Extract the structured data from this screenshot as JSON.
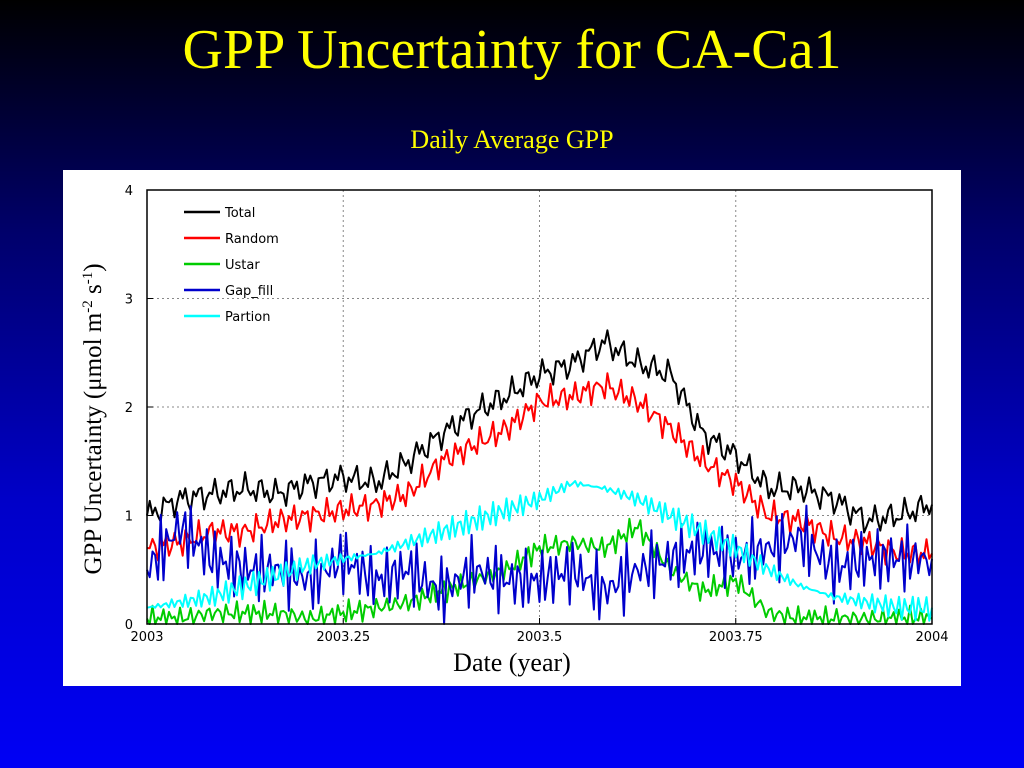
{
  "title": "GPP Uncertainty for CA-Ca1",
  "chart_data": {
    "type": "line",
    "title": "Daily Average GPP",
    "xlabel": "Date (year)",
    "ylabel_main": "GPP Uncertainty (μmol m",
    "ylabel_sup1": "-2",
    "ylabel_mid": " s",
    "ylabel_sup2": "-1",
    "ylabel_end": ")",
    "xlim": [
      2003,
      2004
    ],
    "ylim": [
      0,
      4
    ],
    "xticks": [
      2003,
      2003.25,
      2003.5,
      2003.75,
      2004
    ],
    "xtick_labels": [
      "2003",
      "2003.25",
      "2003.5",
      "2003.75",
      "2004"
    ],
    "yticks": [
      0,
      1,
      2,
      3,
      4
    ],
    "ytick_labels": [
      "0",
      "1",
      "2",
      "3",
      "4"
    ],
    "grid": true,
    "legend_position": "top-left",
    "x": [
      2003.0,
      2003.042,
      2003.083,
      2003.125,
      2003.167,
      2003.208,
      2003.25,
      2003.292,
      2003.333,
      2003.375,
      2003.417,
      2003.458,
      2003.5,
      2003.542,
      2003.583,
      2003.625,
      2003.667,
      2003.708,
      2003.75,
      2003.792,
      2003.833,
      2003.875,
      2003.917,
      2003.958,
      2004.0
    ],
    "series": [
      {
        "name": "Total",
        "color": "#000000",
        "values": [
          1.0,
          1.15,
          1.2,
          1.25,
          1.2,
          1.3,
          1.35,
          1.3,
          1.5,
          1.75,
          1.95,
          2.1,
          2.3,
          2.4,
          2.6,
          2.4,
          2.3,
          1.75,
          1.55,
          1.25,
          1.25,
          1.15,
          0.95,
          1.0,
          1.1
        ]
      },
      {
        "name": "Random",
        "color": "#ff0000",
        "values": [
          0.7,
          0.75,
          0.85,
          0.85,
          0.95,
          1.0,
          1.05,
          1.1,
          1.2,
          1.5,
          1.65,
          1.8,
          2.05,
          2.1,
          2.2,
          2.05,
          1.8,
          1.5,
          1.3,
          1.0,
          0.95,
          0.8,
          0.75,
          0.65,
          0.65
        ]
      },
      {
        "name": "Ustar",
        "color": "#00cc00",
        "values": [
          0.05,
          0.05,
          0.1,
          0.1,
          0.1,
          0.05,
          0.1,
          0.15,
          0.2,
          0.3,
          0.4,
          0.5,
          0.7,
          0.75,
          0.7,
          0.9,
          0.5,
          0.3,
          0.4,
          0.1,
          0.05,
          0.05,
          0.05,
          0.05,
          0.05
        ]
      },
      {
        "name": "Gap_fill",
        "color": "#0000cc",
        "values": [
          0.5,
          0.9,
          0.6,
          0.5,
          0.5,
          0.4,
          0.6,
          0.4,
          0.5,
          0.3,
          0.5,
          0.4,
          0.4,
          0.5,
          0.3,
          0.5,
          0.6,
          0.7,
          0.6,
          0.7,
          0.8,
          0.5,
          0.6,
          0.6,
          0.6
        ]
      },
      {
        "name": "Partion",
        "color": "#00ffff",
        "values": [
          0.15,
          0.2,
          0.25,
          0.35,
          0.45,
          0.55,
          0.6,
          0.65,
          0.75,
          0.85,
          0.95,
          1.05,
          1.15,
          1.3,
          1.25,
          1.15,
          1.0,
          0.85,
          0.7,
          0.5,
          0.35,
          0.25,
          0.2,
          0.15,
          0.15
        ]
      }
    ]
  }
}
